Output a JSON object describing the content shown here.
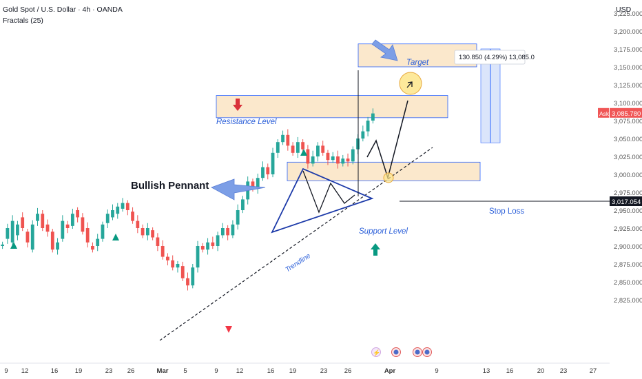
{
  "header": {
    "symbol": "Gold Spot / U.S. Dollar · 4h · OANDA",
    "indicator": "Fractals (25)",
    "currency": "USD"
  },
  "colors": {
    "up": "#26a69a",
    "down": "#ef5350",
    "zone_fill": "#fbe8cc",
    "zone_stroke": "#2962ff",
    "annotation_blue": "#2b5fd9",
    "arrow_blue": "#7c9ee6",
    "target_circle": "#fde58a",
    "ask_tag": "#f05656",
    "stop_tag": "#131722"
  },
  "annotations": {
    "bullish_pennant": "Bullish Pennant",
    "resistance": "Resistance Level",
    "support": "Support Level",
    "target": "Target",
    "stop_loss": "Stop Loss",
    "trendline": "Trendline",
    "measure": "130.850 (4.29%) 13,085.0",
    "ask_label": "Ask",
    "ask_price": "3,085.780",
    "stop_price": "3,017.054"
  },
  "chart_data": {
    "type": "candlestick",
    "y_axis": {
      "ticks": [
        "3,225.000",
        "3,200.000",
        "3,175.000",
        "3,150.000",
        "3,125.000",
        "3,100.000",
        "3,075.000",
        "3,050.000",
        "3,025.000",
        "3,000.000",
        "2,975.000",
        "2,950.000",
        "2,925.000",
        "2,900.000",
        "2,875.000",
        "2,850.000",
        "2,825.000"
      ],
      "range": [
        2815,
        3240
      ]
    },
    "x_axis": {
      "ticks": [
        "9",
        "12",
        "16",
        "19",
        "23",
        "26",
        "Mar",
        "5",
        "9",
        "12",
        "16",
        "19",
        "23",
        "26",
        "Apr",
        "9",
        "13",
        "16",
        "20",
        "23",
        "27"
      ]
    },
    "price_path": [
      [
        2900,
        2902
      ],
      [
        2910,
        2925
      ],
      [
        2905,
        2935
      ],
      [
        2915,
        2930
      ],
      [
        2940,
        2925
      ],
      [
        2920,
        2905
      ],
      [
        2895,
        2930
      ],
      [
        2935,
        2945
      ],
      [
        2945,
        2925
      ],
      [
        2930,
        2920
      ],
      [
        2920,
        2895
      ],
      [
        2895,
        2905
      ],
      [
        2910,
        2935
      ],
      [
        2930,
        2925
      ],
      [
        2928,
        2945
      ],
      [
        2950,
        2940
      ],
      [
        2940,
        2920
      ],
      [
        2925,
        2905
      ],
      [
        2900,
        2895
      ],
      [
        2900,
        2910
      ],
      [
        2910,
        2930
      ],
      [
        2932,
        2945
      ],
      [
        2940,
        2950
      ],
      [
        2945,
        2955
      ],
      [
        2952,
        2960
      ],
      [
        2960,
        2950
      ],
      [
        2948,
        2935
      ],
      [
        2935,
        2925
      ],
      [
        2925,
        2915
      ],
      [
        2915,
        2925
      ],
      [
        2922,
        2912
      ],
      [
        2912,
        2900
      ],
      [
        2900,
        2885
      ],
      [
        2885,
        2880
      ],
      [
        2880,
        2870
      ],
      [
        2870,
        2875
      ],
      [
        2872,
        2855
      ],
      [
        2855,
        2845
      ],
      [
        2845,
        2870
      ],
      [
        2870,
        2900
      ],
      [
        2900,
        2895
      ],
      [
        2895,
        2905
      ],
      [
        2905,
        2900
      ],
      [
        2900,
        2915
      ],
      [
        2915,
        2925
      ],
      [
        2925,
        2915
      ],
      [
        2915,
        2930
      ],
      [
        2930,
        2950
      ],
      [
        2950,
        2965
      ],
      [
        2965,
        2990
      ],
      [
        2990,
        2980
      ],
      [
        2980,
        2995
      ],
      [
        2995,
        3010
      ],
      [
        3010,
        3000
      ],
      [
        3000,
        3030
      ],
      [
        3030,
        3045
      ],
      [
        3045,
        3055
      ],
      [
        3055,
        3040
      ],
      [
        3040,
        3030
      ],
      [
        3030,
        3045
      ],
      [
        3045,
        3035
      ],
      [
        3035,
        3015
      ],
      [
        3015,
        3025
      ],
      [
        3025,
        3040
      ],
      [
        3040,
        3030
      ],
      [
        3030,
        3020
      ],
      [
        3020,
        3025
      ],
      [
        3025,
        3015
      ],
      [
        3015,
        3022
      ],
      [
        3022,
        3018
      ],
      [
        3018,
        3035
      ],
      [
        3035,
        3050
      ],
      [
        3050,
        3060
      ],
      [
        3060,
        3075
      ],
      [
        3075,
        3085
      ]
    ],
    "levels": {
      "resistance_zone": [
        3079,
        3110
      ],
      "support_zone": [
        2991,
        3017
      ],
      "target_zone": [
        3150,
        3182
      ],
      "stop_loss": 3017.054,
      "ask": 3085.78,
      "measure_from": 3044,
      "measure_to": 3175
    }
  }
}
